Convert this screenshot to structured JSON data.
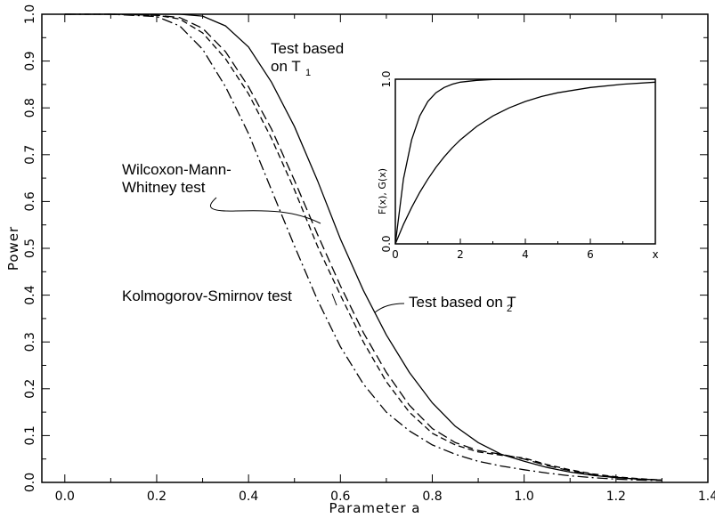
{
  "chart_data": [
    {
      "type": "line",
      "xlabel": "Parameter a",
      "ylabel": "Power",
      "xlim": [
        -0.05,
        1.4
      ],
      "ylim": [
        0.0,
        1.0
      ],
      "x_ticks": [
        "0.0",
        "0.2",
        "0.4",
        "0.6",
        "0.8",
        "1.0",
        "1.2",
        "1.4"
      ],
      "y_ticks": [
        "0.0",
        "0.1",
        "0.2",
        "0.3",
        "0.4",
        "0.5",
        "0.6",
        "0.7",
        "0.8",
        "0.9",
        "1.0"
      ],
      "grid": false,
      "series": [
        {
          "style": "solid",
          "x": [
            0.0,
            0.1,
            0.2,
            0.25,
            0.3,
            0.35,
            0.4,
            0.45,
            0.5,
            0.55,
            0.6,
            0.65,
            0.7,
            0.75,
            0.8,
            0.85,
            0.9,
            0.95,
            1.0,
            1.05,
            1.1,
            1.15,
            1.2,
            1.25,
            1.3
          ],
          "y": [
            1.0,
            1.0,
            1.0,
            1.0,
            0.996,
            0.975,
            0.93,
            0.855,
            0.76,
            0.645,
            0.52,
            0.41,
            0.315,
            0.235,
            0.17,
            0.12,
            0.085,
            0.06,
            0.045,
            0.032,
            0.022,
            0.015,
            0.01,
            0.007,
            0.005
          ]
        },
        {
          "style": "short-dash",
          "x": [
            0.0,
            0.1,
            0.2,
            0.25,
            0.3,
            0.35,
            0.4,
            0.45,
            0.5,
            0.55,
            0.6,
            0.65,
            0.7,
            0.75,
            0.8,
            0.85,
            0.9,
            0.95,
            1.0,
            1.05,
            1.1,
            1.15,
            1.2,
            1.25,
            1.3
          ],
          "y": [
            1.0,
            1.0,
            0.998,
            0.99,
            0.96,
            0.905,
            0.83,
            0.735,
            0.625,
            0.505,
            0.4,
            0.3,
            0.215,
            0.15,
            0.105,
            0.08,
            0.065,
            0.058,
            0.052,
            0.038,
            0.027,
            0.018,
            0.012,
            0.008,
            0.005
          ]
        },
        {
          "style": "long-dash",
          "x": [
            0.0,
            0.1,
            0.2,
            0.25,
            0.3,
            0.35,
            0.4,
            0.45,
            0.5,
            0.55,
            0.6,
            0.65,
            0.7,
            0.75,
            0.8,
            0.85,
            0.9,
            0.95,
            1.0,
            1.05,
            1.1,
            1.15,
            1.2,
            1.25,
            1.3
          ],
          "y": [
            1.0,
            1.0,
            0.998,
            0.993,
            0.97,
            0.92,
            0.845,
            0.755,
            0.645,
            0.53,
            0.42,
            0.32,
            0.235,
            0.165,
            0.115,
            0.085,
            0.068,
            0.06,
            0.05,
            0.036,
            0.025,
            0.017,
            0.011,
            0.007,
            0.005
          ]
        },
        {
          "style": "dash-dot",
          "x": [
            0.0,
            0.1,
            0.2,
            0.25,
            0.3,
            0.35,
            0.4,
            0.45,
            0.5,
            0.55,
            0.6,
            0.65,
            0.7,
            0.75,
            0.8,
            0.85,
            0.9,
            0.95,
            1.0,
            1.05,
            1.1,
            1.15,
            1.2,
            1.25,
            1.3
          ],
          "y": [
            1.0,
            1.0,
            0.995,
            0.975,
            0.925,
            0.845,
            0.745,
            0.625,
            0.505,
            0.39,
            0.29,
            0.21,
            0.15,
            0.11,
            0.08,
            0.06,
            0.045,
            0.035,
            0.027,
            0.02,
            0.014,
            0.01,
            0.007,
            0.005,
            0.004
          ]
        }
      ],
      "annotations": [
        {
          "lines": [
            "Test based",
            "on T"
          ],
          "subscript": "1",
          "anchor_x": 0.64,
          "anchor_y": 0.985
        },
        {
          "lines": [
            "Wilcoxon-Mann-",
            "Whitney test"
          ],
          "anchor_x": 0.54,
          "anchor_y": 0.53
        },
        {
          "lines": [
            "Kolmogorov-Smirnov test"
          ],
          "anchor_x": 0.6,
          "anchor_y": 0.37
        },
        {
          "lines": [
            "Test based on T"
          ],
          "subscript": "2",
          "anchor_x": 0.68,
          "anchor_y": 0.32
        }
      ]
    },
    {
      "type": "line",
      "inset": true,
      "xlabel": "x",
      "ylabel": "F(x), G(x)",
      "xlim": [
        0,
        8
      ],
      "ylim": [
        0.0,
        1.0
      ],
      "x_ticks": [
        "0",
        "2",
        "4",
        "6",
        "x"
      ],
      "y_ticks": [
        "0.0",
        "1.0"
      ],
      "series": [
        {
          "style": "solid",
          "x": [
            0,
            0.25,
            0.5,
            0.75,
            1,
            1.25,
            1.5,
            1.75,
            2,
            2.5,
            3,
            3.5,
            4,
            4.5,
            5,
            6,
            7,
            8
          ],
          "y": [
            0,
            0.394,
            0.632,
            0.777,
            0.865,
            0.918,
            0.95,
            0.97,
            0.982,
            0.993,
            0.998,
            0.999,
            1.0,
            1.0,
            1.0,
            1.0,
            1.0,
            1.0
          ]
        },
        {
          "style": "solid",
          "x": [
            0,
            0.25,
            0.5,
            0.75,
            1,
            1.25,
            1.5,
            1.75,
            2,
            2.5,
            3,
            3.5,
            4,
            4.5,
            5,
            6,
            7,
            8
          ],
          "y": [
            0,
            0.118,
            0.221,
            0.313,
            0.393,
            0.465,
            0.528,
            0.583,
            0.632,
            0.713,
            0.777,
            0.826,
            0.865,
            0.895,
            0.918,
            0.95,
            0.97,
            0.982
          ]
        }
      ]
    }
  ]
}
